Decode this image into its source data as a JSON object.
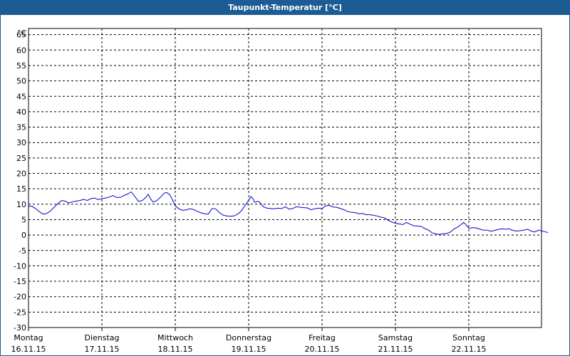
{
  "chart_data": {
    "type": "line",
    "title": "Taupunkt-Temperatur [°C]",
    "unit_label": "°C",
    "ylim": [
      -30,
      67
    ],
    "y_ticks": [
      65,
      60,
      55,
      50,
      45,
      40,
      35,
      30,
      25,
      20,
      15,
      10,
      5,
      0,
      -5,
      -10,
      -15,
      -20,
      -25,
      -30
    ],
    "grid": true,
    "x_days": [
      {
        "day": "Montag",
        "date": "16.11.15"
      },
      {
        "day": "Dienstag",
        "date": "17.11.15"
      },
      {
        "day": "Mittwoch",
        "date": "18.11.15"
      },
      {
        "day": "Donnerstag",
        "date": "19.11.15"
      },
      {
        "day": "Freitag",
        "date": "20.11.15"
      },
      {
        "day": "Samstag",
        "date": "21.11.15"
      },
      {
        "day": "Sonntag",
        "date": "22.11.15"
      }
    ],
    "series": [
      {
        "color": "#0000cc",
        "points": [
          [
            0.0,
            9.4
          ],
          [
            0.05,
            9.3
          ],
          [
            0.1,
            8.5
          ],
          [
            0.15,
            7.5
          ],
          [
            0.2,
            6.8
          ],
          [
            0.25,
            7.0
          ],
          [
            0.3,
            7.8
          ],
          [
            0.35,
            9.0
          ],
          [
            0.4,
            10.2
          ],
          [
            0.45,
            11.2
          ],
          [
            0.5,
            11.0
          ],
          [
            0.55,
            10.4
          ],
          [
            0.6,
            10.8
          ],
          [
            0.65,
            11.0
          ],
          [
            0.7,
            11.2
          ],
          [
            0.75,
            11.6
          ],
          [
            0.8,
            11.2
          ],
          [
            0.85,
            11.8
          ],
          [
            0.9,
            12.0
          ],
          [
            0.95,
            11.5
          ],
          [
            1.0,
            11.8
          ],
          [
            1.05,
            12.0
          ],
          [
            1.1,
            12.3
          ],
          [
            1.15,
            12.8
          ],
          [
            1.2,
            12.2
          ],
          [
            1.25,
            12.2
          ],
          [
            1.3,
            12.8
          ],
          [
            1.35,
            13.3
          ],
          [
            1.4,
            14.0
          ],
          [
            1.45,
            12.5
          ],
          [
            1.5,
            10.9
          ],
          [
            1.55,
            11.2
          ],
          [
            1.6,
            12.2
          ],
          [
            1.63,
            13.2
          ],
          [
            1.67,
            11.5
          ],
          [
            1.7,
            10.7
          ],
          [
            1.75,
            11.2
          ],
          [
            1.8,
            12.3
          ],
          [
            1.85,
            13.6
          ],
          [
            1.88,
            13.8
          ],
          [
            1.92,
            13.2
          ],
          [
            1.95,
            12.0
          ],
          [
            2.0,
            9.5
          ],
          [
            2.05,
            8.5
          ],
          [
            2.1,
            8.0
          ],
          [
            2.15,
            8.2
          ],
          [
            2.2,
            8.5
          ],
          [
            2.25,
            8.3
          ],
          [
            2.3,
            7.7
          ],
          [
            2.35,
            7.2
          ],
          [
            2.4,
            6.9
          ],
          [
            2.45,
            6.8
          ],
          [
            2.5,
            8.6
          ],
          [
            2.55,
            8.5
          ],
          [
            2.6,
            7.3
          ],
          [
            2.65,
            6.5
          ],
          [
            2.7,
            6.2
          ],
          [
            2.75,
            6.1
          ],
          [
            2.8,
            6.2
          ],
          [
            2.85,
            6.8
          ],
          [
            2.9,
            7.8
          ],
          [
            2.95,
            9.6
          ],
          [
            3.0,
            11.2
          ],
          [
            3.03,
            12.5
          ],
          [
            3.06,
            11.7
          ],
          [
            3.08,
            10.6
          ],
          [
            3.12,
            10.9
          ],
          [
            3.15,
            10.7
          ],
          [
            3.2,
            9.2
          ],
          [
            3.25,
            8.7
          ],
          [
            3.3,
            8.6
          ],
          [
            3.35,
            8.5
          ],
          [
            3.4,
            8.7
          ],
          [
            3.45,
            8.6
          ],
          [
            3.5,
            9.2
          ],
          [
            3.55,
            8.4
          ],
          [
            3.6,
            8.6
          ],
          [
            3.65,
            9.2
          ],
          [
            3.7,
            9.0
          ],
          [
            3.75,
            8.9
          ],
          [
            3.8,
            8.8
          ],
          [
            3.85,
            8.2
          ],
          [
            3.9,
            8.5
          ],
          [
            3.95,
            8.7
          ],
          [
            4.0,
            8.6
          ],
          [
            4.05,
            9.5
          ],
          [
            4.1,
            9.6
          ],
          [
            4.15,
            9.1
          ],
          [
            4.2,
            9.0
          ],
          [
            4.25,
            8.6
          ],
          [
            4.3,
            8.2
          ],
          [
            4.35,
            7.6
          ],
          [
            4.4,
            7.4
          ],
          [
            4.45,
            7.3
          ],
          [
            4.5,
            6.9
          ],
          [
            4.55,
            7.0
          ],
          [
            4.6,
            6.6
          ],
          [
            4.65,
            6.6
          ],
          [
            4.7,
            6.4
          ],
          [
            4.75,
            6.2
          ],
          [
            4.8,
            5.8
          ],
          [
            4.85,
            5.6
          ],
          [
            4.9,
            4.8
          ],
          [
            4.95,
            4.2
          ],
          [
            5.0,
            3.8
          ],
          [
            5.05,
            3.6
          ],
          [
            5.1,
            3.4
          ],
          [
            5.15,
            4.1
          ],
          [
            5.2,
            3.5
          ],
          [
            5.25,
            3.0
          ],
          [
            5.3,
            2.9
          ],
          [
            5.35,
            2.8
          ],
          [
            5.4,
            2.1
          ],
          [
            5.45,
            1.6
          ],
          [
            5.5,
            0.7
          ],
          [
            5.55,
            0.4
          ],
          [
            5.6,
            0.2
          ],
          [
            5.65,
            0.4
          ],
          [
            5.7,
            0.5
          ],
          [
            5.75,
            1.0
          ],
          [
            5.8,
            2.0
          ],
          [
            5.85,
            2.6
          ],
          [
            5.9,
            3.5
          ],
          [
            5.93,
            4.1
          ],
          [
            5.96,
            3.4
          ],
          [
            6.0,
            2.2
          ],
          [
            6.05,
            2.4
          ],
          [
            6.1,
            2.3
          ],
          [
            6.15,
            1.9
          ],
          [
            6.2,
            1.6
          ],
          [
            6.25,
            1.6
          ],
          [
            6.3,
            1.2
          ],
          [
            6.35,
            1.5
          ],
          [
            6.4,
            1.8
          ],
          [
            6.45,
            2.0
          ],
          [
            6.5,
            1.9
          ],
          [
            6.55,
            2.0
          ],
          [
            6.6,
            1.5
          ],
          [
            6.65,
            1.3
          ],
          [
            6.7,
            1.4
          ],
          [
            6.75,
            1.6
          ],
          [
            6.8,
            1.9
          ],
          [
            6.85,
            1.3
          ],
          [
            6.9,
            1.0
          ],
          [
            6.95,
            1.6
          ],
          [
            7.0,
            1.3
          ],
          [
            7.05,
            1.0
          ],
          [
            7.08,
            0.8
          ]
        ]
      }
    ]
  }
}
